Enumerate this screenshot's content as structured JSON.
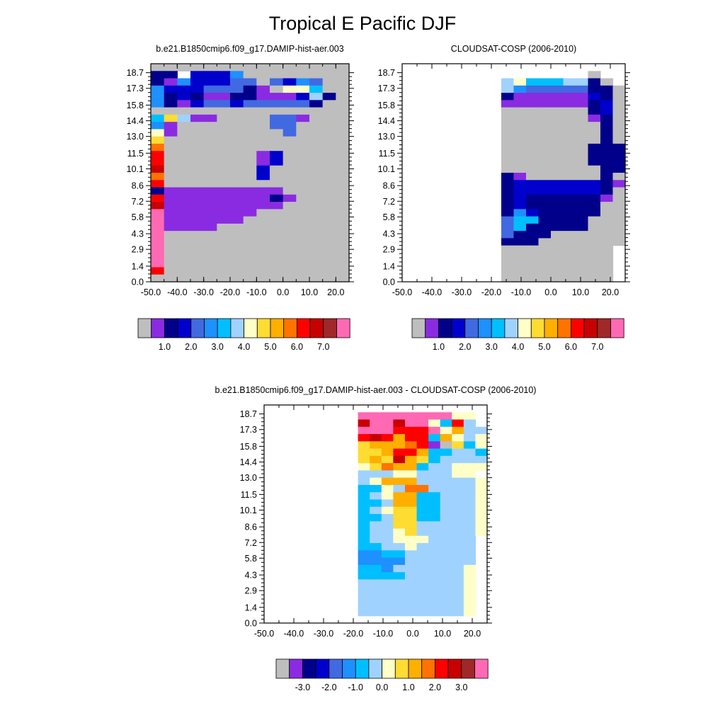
{
  "figure_title": "Tropical E Pacific DJF",
  "colors": {
    "missing": "#bebebe",
    "levels": [
      "#bebebe",
      "#8a2be2",
      "#00008b",
      "#0000cd",
      "#4169e1",
      "#1e90ff",
      "#00bfff",
      "#a0d2ff",
      "#ffffc8",
      "#ffdc32",
      "#ffaf00",
      "#ff7300",
      "#ff0000",
      "#c80000",
      "#a02828",
      "#ff69b4"
    ]
  },
  "chart_data": [
    {
      "type": "heatmap",
      "title": "b.e21.B1850cmip6.f09_g17.DAMIP-hist-aer.003",
      "xlim": [
        -50,
        25
      ],
      "ylim": [
        0,
        19.5
      ],
      "x_ticks": [
        "-50.0",
        "-40.0",
        "-30.0",
        "-20.0",
        "-10.0",
        "0.0",
        "10.0",
        "20.0"
      ],
      "y_ticks": [
        "0.0",
        "1.4",
        "2.9",
        "4.3",
        "5.8",
        "7.2",
        "8.6",
        "10.1",
        "11.5",
        "13.0",
        "14.4",
        "15.8",
        "17.3",
        "18.7"
      ],
      "colorbar_labels": [
        "1.0",
        "2.0",
        "3.0",
        "4.0",
        "5.0",
        "6.0",
        "7.0"
      ],
      "rows": [
        "000000000000000",
        "cczdddf00000000",
        "cbfdddeeaedfe00",
        "fdddeeecbaiig00",
        "fcdcbbccbbbdhc0",
        "fcbdeedeeeeeca0",
        "aaaaaaaaaaaaa00",
        "gjhbbaaaaeebaa0",
        "fbaaaaaaaeeaa00",
        "ibaaaaaaaaeaa00",
        "jaaaaaaaaaaa000",
        "laaaaaaaaaaa000",
        "maaaaaaabdaa000",
        "ma000000bdaa000",
        "na000000daa0000",
        "la000000daa0000",
        "maaaaaaaaaa0000",
        "cbbbbbbbbbaa000",
        "mbbbbbbbbcb0000",
        "nbbbbbbbbb00000",
        "pbbbbbbbaa00000",
        "pbbbbbba0000000",
        "pbbbbaa00000000",
        "paaa00000000000",
        "p00000000000000",
        "p00000000000000",
        "p00000000000000",
        "p00000000000000",
        "m00000000000000",
        "000000000000000"
      ]
    },
    {
      "type": "heatmap",
      "title": "CLOUDSAT-COSP (2006-2010)",
      "xlim": [
        -50,
        25
      ],
      "ylim": [
        0,
        19.5
      ],
      "x_ticks": [
        "-50.0",
        "-40.0",
        "-30.0",
        "-20.0",
        "-10.0",
        "0.0",
        "10.0",
        "20.0"
      ],
      "y_ticks": [
        "0.0",
        "1.4",
        "2.9",
        "4.3",
        "5.8",
        "7.2",
        "8.6",
        "10.1",
        "11.5",
        "13.0",
        "14.4",
        "15.8",
        "17.3",
        "18.7"
      ],
      "colorbar_labels": [
        "1.0",
        "2.0",
        "3.0",
        "4.0",
        "5.0",
        "6.0",
        "7.0"
      ],
      "rows": [
        "__________________",
        "_______________0__",
        "________higgghhc0__",
        "________hfeeeeecc0_",
        "________cbbbbbbdc0_",
        "________bbbbbbbcd0_",
        "________aaaaaaacd0_",
        "________aaaaaaabc0_",
        "________aaaaaaaac0_",
        "________aaaaa00ac0_",
        "________aaaaaaaac0_",
        "________aaaaaaaccc_",
        "________aaaaaaaccc_",
        "________aaaaaaaccc_",
        "________aaaaaaaacc_",
        "________cbaaaaaac0_",
        "________cdddddddcb_",
        "________cdddddddca_",
        "________cdccccccba_",
        "________cdcccccca0_",
        "________cfdccccc0a_",
        "________eggcccca0a_",
        "________egccccca00_",
        "________eccca00000_",
        "________cccaa00000_",
        "________a00000000__",
        "________000000000__",
        "________000000000__",
        "________000000000__",
        "________000000000__"
      ]
    },
    {
      "type": "heatmap",
      "title": "b.e21.B1850cmip6.f09_g17.DAMIP-hist-aer.003 - CLOUDSAT-COSP (2006-2010)",
      "xlim": [
        -50,
        25
      ],
      "ylim": [
        0,
        19.5
      ],
      "x_ticks": [
        "-50.0",
        "-40.0",
        "-30.0",
        "-20.0",
        "-10.0",
        "0.0",
        "10.0",
        "20.0"
      ],
      "y_ticks": [
        "0.0",
        "1.4",
        "2.9",
        "4.3",
        "5.8",
        "7.2",
        "8.6",
        "10.1",
        "11.5",
        "13.0",
        "14.4",
        "15.8",
        "17.3",
        "18.7"
      ],
      "colorbar_labels": [
        "-3.0",
        "-2.0",
        "-1.0",
        "0.0",
        "1.0",
        "2.0",
        "3.0"
      ],
      "rows": [
        "___________________",
        "________pppppppp88_",
        "________nppnpp86m7_",
        "________pppmmmp8k77",
        "________mnmkmm6k8h8",
        "________jkkklmbajg8",
        "________jjkmmkgg77g",
        "________jkjnkjg7777",
        "________8jlkkg77888",
        "________7778877788_",
        "________78kkk777778",
        "________6687ll77778",
        "________678kk667778",
        "________667kk667778",
        "________678jj667778",
        "________667jj667778",
        "________677jj777778",
        "________6778j777778",
        "________6778887777_",
        "________6677877777_",
        "________5566777777_",
        "________5555777777_",
        "________6657777778_",
        "________6666777778_",
        "________7777777778_",
        "________7777777778_",
        "________7777777778_",
        "________7777777778_",
        "________7777777778_",
        "___________________"
      ]
    }
  ]
}
